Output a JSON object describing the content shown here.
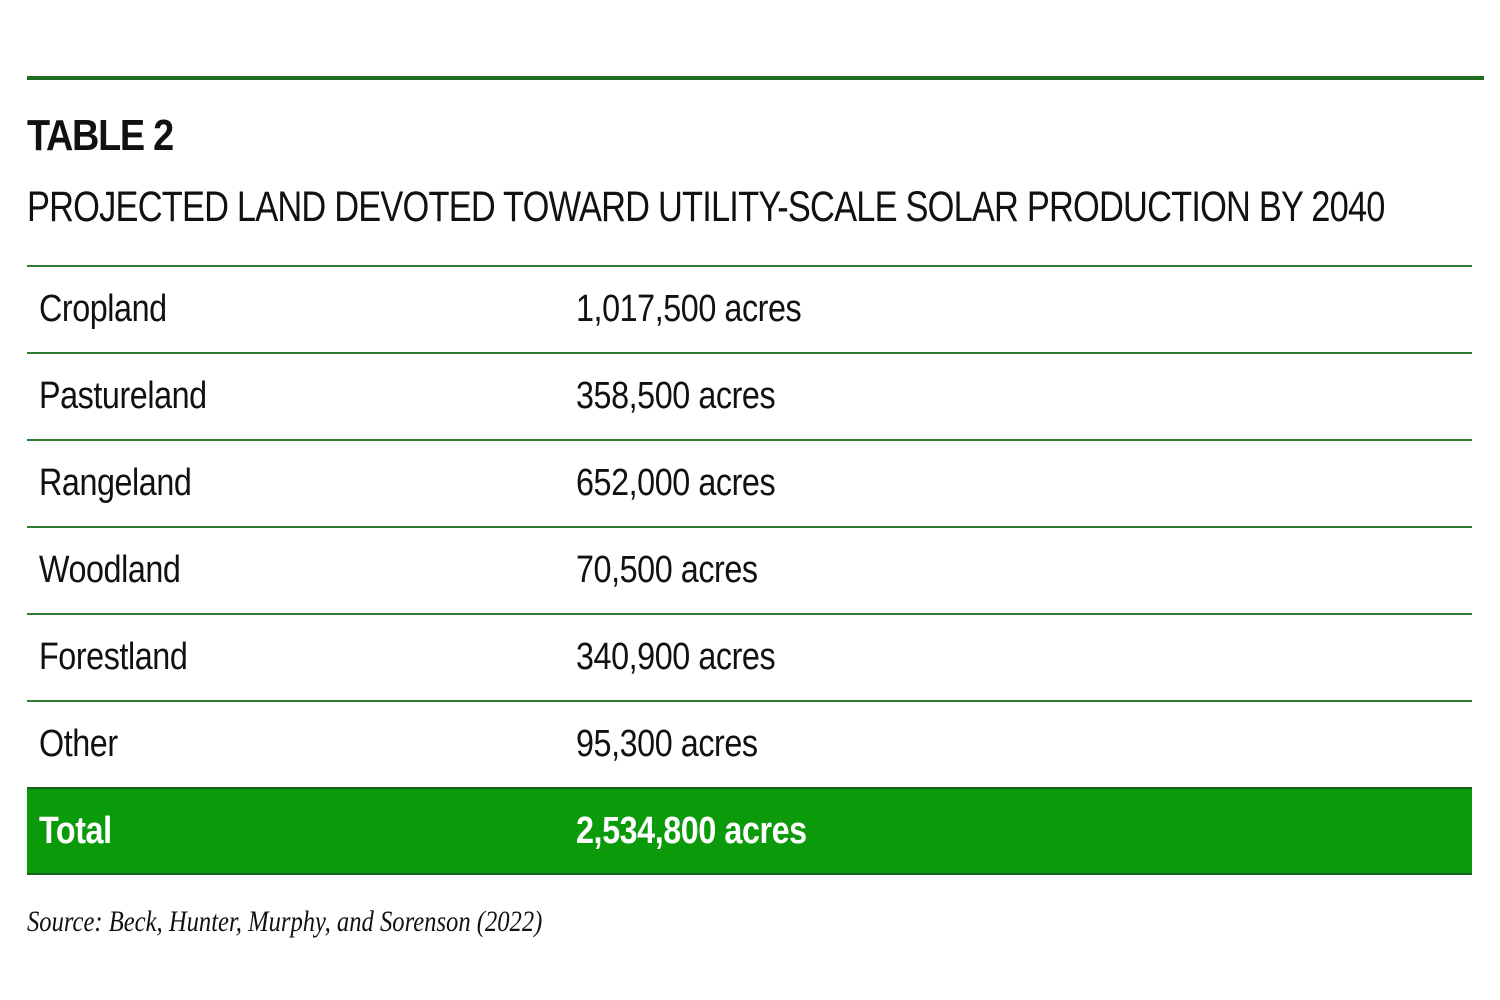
{
  "table": {
    "label": "TABLE 2",
    "title": "PROJECTED LAND DEVOTED TOWARD UTILITY-SCALE SOLAR PRODUCTION BY 2040",
    "rows": [
      {
        "land": "Cropland",
        "area": "1,017,500 acres"
      },
      {
        "land": "Pastureland",
        "area": "358,500 acres"
      },
      {
        "land": "Rangeland",
        "area": "652,000 acres"
      },
      {
        "land": "Woodland",
        "area": "70,500 acres"
      },
      {
        "land": "Forestland",
        "area": "340,900 acres"
      },
      {
        "land": "Other",
        "area": "95,300 acres"
      }
    ],
    "total": {
      "land": "Total",
      "area": "2,534,800 acres"
    },
    "source": "Source: Beck, Hunter, Murphy, and Sorenson (2022)"
  },
  "colors": {
    "accent_green": "#0a9a0a",
    "rule_green": "#2e7d32"
  }
}
